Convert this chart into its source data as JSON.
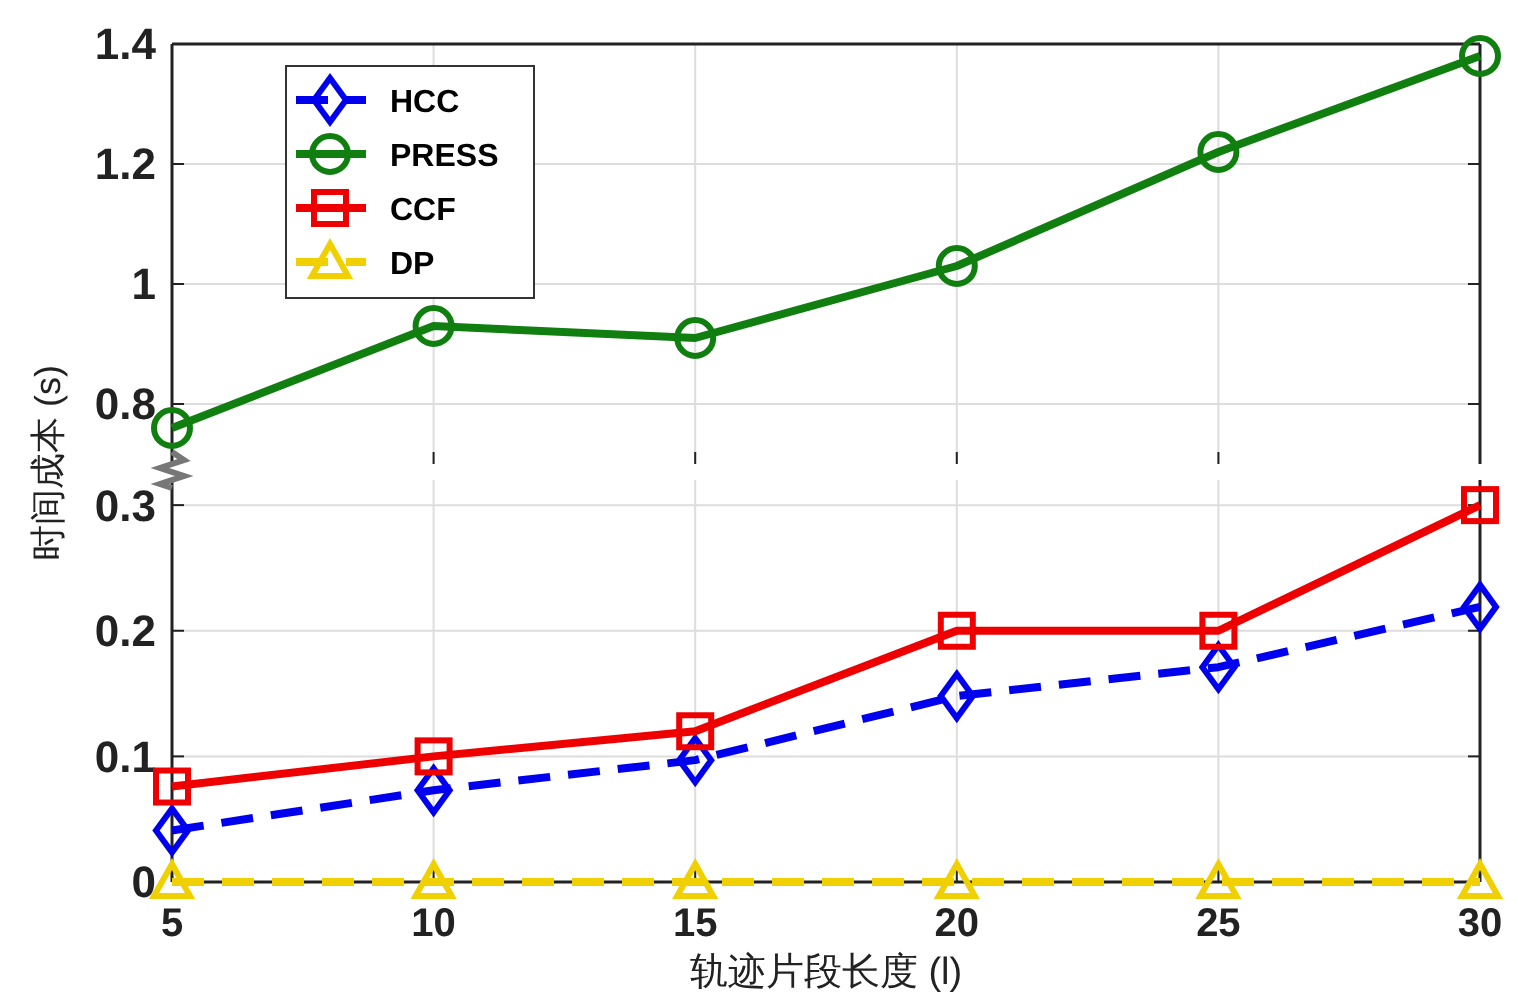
{
  "chart_data": [
    {
      "type": "line",
      "ylabel": "时间成本 (s)",
      "x": [
        5,
        10,
        15,
        20,
        25,
        30
      ],
      "xlim": [
        5,
        30
      ],
      "xticks": [
        5,
        10,
        15,
        20,
        25,
        30
      ],
      "ylim": [
        0.7,
        1.4
      ],
      "yticks": [
        0.8,
        1,
        1.2,
        1.4
      ],
      "grid": true,
      "legend": "top left",
      "tick_labels": "y",
      "series": [
        {
          "name": "HCC",
          "color": "#0000ee",
          "marker": "diamond",
          "line_style": "dashed",
          "values": [
            null,
            null,
            null,
            null,
            null,
            null
          ]
        },
        {
          "name": "PRESS",
          "color": "#107f10",
          "marker": "circle",
          "line_style": "solid",
          "values": [
            0.76,
            0.93,
            0.91,
            1.03,
            1.22,
            1.38
          ]
        },
        {
          "name": "CCF",
          "color": "#ee0000",
          "marker": "square",
          "line_style": "solid",
          "values": [
            null,
            null,
            null,
            null,
            null,
            null
          ]
        },
        {
          "name": "DP",
          "color": "#f0d000",
          "marker": "triangle",
          "line_style": "dashed",
          "values": [
            null,
            null,
            null,
            null,
            null,
            null
          ]
        }
      ]
    },
    {
      "type": "line",
      "xlabel": "轨迹片段长度 (l)",
      "x": [
        5,
        10,
        15,
        20,
        25,
        30
      ],
      "xlim": [
        5,
        30
      ],
      "xticks": [
        5,
        10,
        15,
        20,
        25,
        30
      ],
      "ylim": [
        0,
        0.32
      ],
      "yticks": [
        0,
        0.1,
        0.2,
        0.3
      ],
      "grid": true,
      "series": [
        {
          "color": "#0000ee",
          "marker": "diamond",
          "line_style": "dashed",
          "values": [
            0.041,
            0.073,
            0.097,
            0.148,
            0.171,
            0.219
          ]
        },
        {
          "color": "#ee0000",
          "marker": "square",
          "line_style": "solid",
          "values": [
            0.076,
            0.1,
            0.12,
            0.2,
            0.2,
            0.3
          ]
        },
        {
          "color": "#f0d000",
          "marker": "triangle",
          "line_style": "dashed",
          "values": [
            0,
            0,
            0,
            0,
            0,
            0
          ]
        }
      ]
    }
  ]
}
